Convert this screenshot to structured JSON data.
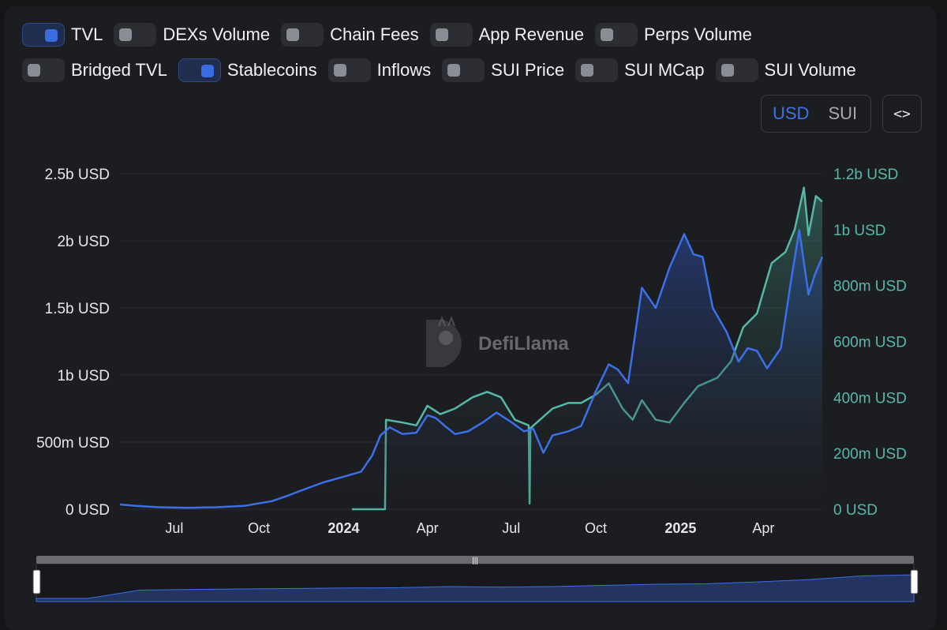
{
  "toggles_row1": [
    {
      "label": "TVL",
      "on": true
    },
    {
      "label": "DEXs Volume",
      "on": false
    },
    {
      "label": "Chain Fees",
      "on": false
    },
    {
      "label": "App Revenue",
      "on": false
    },
    {
      "label": "Perps Volume",
      "on": false
    }
  ],
  "toggles_row2": [
    {
      "label": "Bridged TVL",
      "on": false
    },
    {
      "label": "Stablecoins",
      "on": true
    },
    {
      "label": "Inflows",
      "on": false
    },
    {
      "label": "SUI Price",
      "on": false
    },
    {
      "label": "SUI MCap",
      "on": false
    },
    {
      "label": "SUI Volume",
      "on": false
    }
  ],
  "unit_toggle": {
    "usd": "USD",
    "sui": "SUI",
    "selected": "USD"
  },
  "embed_button": "<>",
  "watermark": "DefiLlama",
  "colors": {
    "tvl": "#3c6fe8",
    "stablecoins": "#57b8a8",
    "background": "#1c1d21"
  },
  "chart_data": {
    "type": "line",
    "x_start": "2023-05-03",
    "x_end": "2025-06-04",
    "x_ticks": [
      {
        "label": "Jul",
        "date": "2023-07-01",
        "bold": false
      },
      {
        "label": "Oct",
        "date": "2023-10-01",
        "bold": false
      },
      {
        "label": "2024",
        "date": "2024-01-01",
        "bold": true
      },
      {
        "label": "Apr",
        "date": "2024-04-01",
        "bold": false
      },
      {
        "label": "Jul",
        "date": "2024-07-01",
        "bold": false
      },
      {
        "label": "Oct",
        "date": "2024-10-01",
        "bold": false
      },
      {
        "label": "2025",
        "date": "2025-01-01",
        "bold": true
      },
      {
        "label": "Apr",
        "date": "2025-04-01",
        "bold": false
      }
    ],
    "y_left": {
      "unit": "USD",
      "range": [
        0,
        2500000000
      ],
      "ticks": [
        "0 USD",
        "500m USD",
        "1b USD",
        "1.5b USD",
        "2b USD",
        "2.5b USD"
      ]
    },
    "y_right": {
      "unit": "USD",
      "range": [
        0,
        1200000000
      ],
      "ticks": [
        "0 USD",
        "200m USD",
        "400m USD",
        "600m USD",
        "800m USD",
        "1b USD",
        "1.2b USD"
      ]
    },
    "series": [
      {
        "name": "TVL",
        "axis": "left",
        "area": true,
        "points": [
          [
            "2023-05-03",
            35000000
          ],
          [
            "2023-05-20",
            25000000
          ],
          [
            "2023-06-15",
            15000000
          ],
          [
            "2023-07-15",
            10000000
          ],
          [
            "2023-08-15",
            15000000
          ],
          [
            "2023-09-15",
            25000000
          ],
          [
            "2023-10-15",
            60000000
          ],
          [
            "2023-11-01",
            100000000
          ],
          [
            "2023-11-20",
            150000000
          ],
          [
            "2023-12-10",
            200000000
          ],
          [
            "2023-12-31",
            240000000
          ],
          [
            "2024-01-20",
            280000000
          ],
          [
            "2024-02-01",
            400000000
          ],
          [
            "2024-02-10",
            550000000
          ],
          [
            "2024-02-20",
            610000000
          ],
          [
            "2024-03-05",
            560000000
          ],
          [
            "2024-03-20",
            570000000
          ],
          [
            "2024-04-01",
            700000000
          ],
          [
            "2024-04-10",
            680000000
          ],
          [
            "2024-04-20",
            620000000
          ],
          [
            "2024-05-01",
            560000000
          ],
          [
            "2024-05-15",
            580000000
          ],
          [
            "2024-06-01",
            650000000
          ],
          [
            "2024-06-15",
            720000000
          ],
          [
            "2024-07-01",
            650000000
          ],
          [
            "2024-07-15",
            580000000
          ],
          [
            "2024-07-25",
            600000000
          ],
          [
            "2024-08-05",
            420000000
          ],
          [
            "2024-08-15",
            550000000
          ],
          [
            "2024-09-01",
            580000000
          ],
          [
            "2024-09-15",
            620000000
          ],
          [
            "2024-10-01",
            880000000
          ],
          [
            "2024-10-15",
            1080000000
          ],
          [
            "2024-10-25",
            1040000000
          ],
          [
            "2024-11-05",
            940000000
          ],
          [
            "2024-11-20",
            1650000000
          ],
          [
            "2024-12-05",
            1500000000
          ],
          [
            "2024-12-20",
            1800000000
          ],
          [
            "2025-01-05",
            2050000000
          ],
          [
            "2025-01-15",
            1900000000
          ],
          [
            "2025-01-25",
            1880000000
          ],
          [
            "2025-02-05",
            1500000000
          ],
          [
            "2025-02-20",
            1320000000
          ],
          [
            "2025-03-05",
            1100000000
          ],
          [
            "2025-03-15",
            1200000000
          ],
          [
            "2025-03-25",
            1180000000
          ],
          [
            "2025-04-05",
            1050000000
          ],
          [
            "2025-04-20",
            1200000000
          ],
          [
            "2025-05-01",
            1700000000
          ],
          [
            "2025-05-10",
            2080000000
          ],
          [
            "2025-05-20",
            1600000000
          ],
          [
            "2025-05-27",
            1750000000
          ],
          [
            "2025-06-04",
            1880000000
          ]
        ]
      },
      {
        "name": "Stablecoins",
        "axis": "right",
        "area": true,
        "points": [
          [
            "2024-01-10",
            0
          ],
          [
            "2024-02-15",
            0
          ],
          [
            "2024-02-16",
            320000000
          ],
          [
            "2024-03-05",
            310000000
          ],
          [
            "2024-03-20",
            300000000
          ],
          [
            "2024-04-01",
            370000000
          ],
          [
            "2024-04-15",
            340000000
          ],
          [
            "2024-05-01",
            360000000
          ],
          [
            "2024-05-20",
            400000000
          ],
          [
            "2024-06-05",
            420000000
          ],
          [
            "2024-06-20",
            400000000
          ],
          [
            "2024-07-05",
            320000000
          ],
          [
            "2024-07-20",
            300000000
          ],
          [
            "2024-07-21",
            20000000
          ],
          [
            "2024-07-22",
            290000000
          ],
          [
            "2024-08-15",
            360000000
          ],
          [
            "2024-09-01",
            380000000
          ],
          [
            "2024-09-15",
            380000000
          ],
          [
            "2024-10-01",
            410000000
          ],
          [
            "2024-10-15",
            450000000
          ],
          [
            "2024-10-30",
            360000000
          ],
          [
            "2024-11-10",
            320000000
          ],
          [
            "2024-11-20",
            390000000
          ],
          [
            "2024-12-05",
            320000000
          ],
          [
            "2024-12-20",
            310000000
          ],
          [
            "2025-01-05",
            380000000
          ],
          [
            "2025-01-20",
            440000000
          ],
          [
            "2025-02-10",
            470000000
          ],
          [
            "2025-02-25",
            530000000
          ],
          [
            "2025-03-10",
            650000000
          ],
          [
            "2025-03-25",
            700000000
          ],
          [
            "2025-04-10",
            880000000
          ],
          [
            "2025-04-25",
            920000000
          ],
          [
            "2025-05-05",
            1000000000
          ],
          [
            "2025-05-15",
            1150000000
          ],
          [
            "2025-05-20",
            980000000
          ],
          [
            "2025-05-28",
            1120000000
          ],
          [
            "2025-06-04",
            1100000000
          ]
        ]
      }
    ],
    "navigator": {
      "values": [
        0.0,
        0.0,
        0.35,
        0.38,
        0.4,
        0.42,
        0.44,
        0.45,
        0.5,
        0.48,
        0.5,
        0.55,
        0.6,
        0.62,
        0.7,
        0.8,
        0.95,
        1.0
      ]
    }
  }
}
